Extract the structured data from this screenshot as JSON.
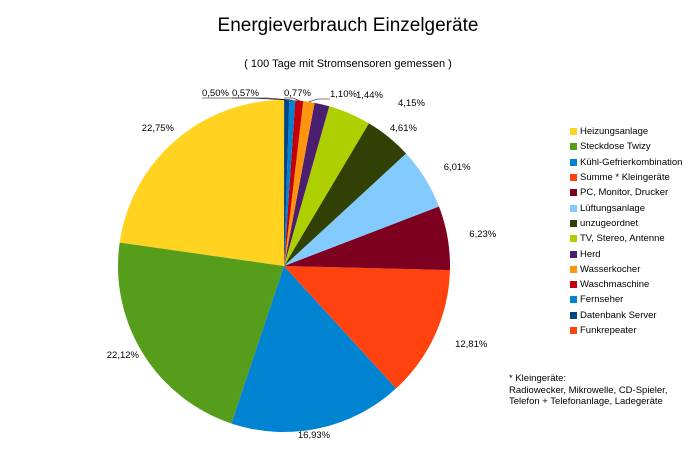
{
  "chart_data": {
    "type": "pie",
    "title": "Energieverbrauch Einzelgeräte",
    "subtitle": "( 100 Tage mit Stromsensoren gemessen )",
    "legend_position": "right",
    "slices": [
      {
        "label": "Heizungsanlage",
        "value": 22.75,
        "value_label": "22,75%",
        "color": "#ffd320"
      },
      {
        "label": "Steckdose Twizy",
        "value": 22.12,
        "value_label": "22,12%",
        "color": "#579d1c"
      },
      {
        "label": "Kühl-Gefrierkombination",
        "value": 16.93,
        "value_label": "16,93%",
        "color": "#0084d1"
      },
      {
        "label": "Summe * Kleingeräte",
        "value": 12.81,
        "value_label": "12,81%",
        "color": "#ff420e"
      },
      {
        "label": "PC, Monitor, Drucker",
        "value": 6.23,
        "value_label": "6,23%",
        "color": "#7e0021"
      },
      {
        "label": "Lüftungsanlage",
        "value": 6.01,
        "value_label": "6,01%",
        "color": "#83caff"
      },
      {
        "label": "unzugeordnet",
        "value": 4.61,
        "value_label": "4,61%",
        "color": "#314004"
      },
      {
        "label": "TV, Stereo, Antenne",
        "value": 4.15,
        "value_label": "4,15%",
        "color": "#aecf00"
      },
      {
        "label": "Herd",
        "value": 1.44,
        "value_label": "1,44%",
        "color": "#4b1f6f"
      },
      {
        "label": "Wasserkocher",
        "value": 1.1,
        "value_label": "1,10%",
        "color": "#ff950e"
      },
      {
        "label": "Waschmaschine",
        "value": 0.77,
        "value_label": "0,77%",
        "color": "#c5000b"
      },
      {
        "label": "Fernseher",
        "value": 0.57,
        "value_label": "0,57%",
        "color": "#0084d1"
      },
      {
        "label": "Datenbank Server",
        "value": 0.5,
        "value_label": "0,50%",
        "color": "#004586"
      },
      {
        "label": "Funkrepeater",
        "value": 0.01,
        "value_label": "",
        "color": "#ff420e"
      }
    ],
    "legend": [
      {
        "label": "Heizungsanlage",
        "color": "#ffd320"
      },
      {
        "label": "Steckdose Twizy",
        "color": "#579d1c"
      },
      {
        "label": "Kühl-Gefrierkombination",
        "color": "#0084d1"
      },
      {
        "label": "Summe * Kleingeräte",
        "color": "#ff420e"
      },
      {
        "label": "PC, Monitor, Drucker",
        "color": "#7e0021"
      },
      {
        "label": "Lüftungsanlage",
        "color": "#83caff"
      },
      {
        "label": "unzugeordnet",
        "color": "#314004"
      },
      {
        "label": "TV, Stereo, Antenne",
        "color": "#aecf00"
      },
      {
        "label": "Herd",
        "color": "#4b1f6f"
      },
      {
        "label": "Wasserkocher",
        "color": "#ff950e"
      },
      {
        "label": "Waschmaschine",
        "color": "#c5000b"
      },
      {
        "label": "Fernseher",
        "color": "#0084d1"
      },
      {
        "label": "Datenbank Server",
        "color": "#004586"
      },
      {
        "label": "Funkrepeater",
        "color": "#ff420e"
      }
    ],
    "footnote": [
      "* Kleingeräte:",
      "Radiowecker, Mikrowelle, CD-Spieler,",
      "Telefon + Telefonanlage, Ladegeräte"
    ]
  }
}
